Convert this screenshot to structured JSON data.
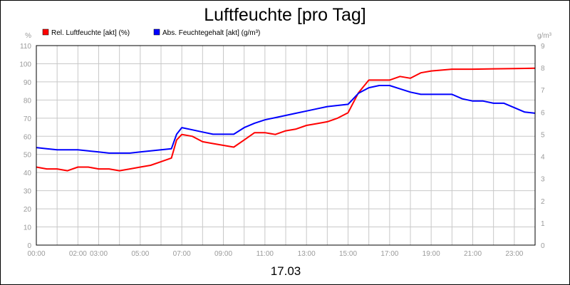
{
  "chart_data": {
    "type": "line",
    "title": "Luftfeuchte [pro Tag]",
    "date_label": "17.03",
    "left_axis": {
      "unit": "%",
      "ylim": [
        0,
        110
      ],
      "ticks": [
        "0",
        "10",
        "20",
        "30",
        "40",
        "50",
        "60",
        "70",
        "80",
        "90",
        "100",
        "110"
      ]
    },
    "right_axis": {
      "unit": "g/m³",
      "ylim": [
        0,
        9
      ],
      "ticks": [
        "0",
        "1",
        "2",
        "3",
        "4",
        "5",
        "6",
        "7",
        "8",
        "9"
      ]
    },
    "x_axis": {
      "xlim_hours": [
        0,
        24
      ],
      "ticks": [
        {
          "label": "00:00",
          "h": 0
        },
        {
          "label": "02:00",
          "h": 2
        },
        {
          "label": "03:00",
          "h": 3
        },
        {
          "label": "05:00",
          "h": 5
        },
        {
          "label": "07:00",
          "h": 7
        },
        {
          "label": "09:00",
          "h": 9
        },
        {
          "label": "11:00",
          "h": 11
        },
        {
          "label": "13:00",
          "h": 13
        },
        {
          "label": "15:00",
          "h": 15
        },
        {
          "label": "17:00",
          "h": 17
        },
        {
          "label": "19:00",
          "h": 19
        },
        {
          "label": "21:00",
          "h": 21
        },
        {
          "label": "23:00",
          "h": 23
        }
      ]
    },
    "grid": true,
    "legend_position": "top-left",
    "series": [
      {
        "name": "Rel. Luftfeuchte [akt] (%)",
        "axis": "left",
        "color": "#ff0000",
        "x": [
          0,
          0.5,
          1,
          1.5,
          2,
          2.5,
          3,
          3.5,
          4,
          4.5,
          5,
          5.5,
          6,
          6.5,
          6.75,
          7,
          7.5,
          8,
          8.5,
          9,
          9.5,
          10,
          10.5,
          11,
          11.5,
          12,
          12.5,
          13,
          13.5,
          14,
          14.5,
          15,
          15.5,
          16,
          16.5,
          17,
          17.5,
          18,
          18.5,
          19,
          19.5,
          20,
          21,
          22,
          23,
          24
        ],
        "y": [
          43,
          42,
          42,
          41,
          43,
          43,
          42,
          42,
          41,
          42,
          43,
          44,
          46,
          48,
          58,
          61,
          60,
          57,
          56,
          55,
          54,
          58,
          62,
          62,
          61,
          63,
          64,
          66,
          67,
          68,
          70,
          73,
          84,
          91,
          91,
          91,
          93,
          92,
          95,
          96,
          96.5,
          97,
          97,
          97.2,
          97.3,
          97.5
        ]
      },
      {
        "name": "Abs. Feuchtegehalt [akt] (g/m³)",
        "axis": "right",
        "color": "#0000ff",
        "x": [
          0,
          0.5,
          1,
          1.5,
          2,
          2.5,
          3,
          3.5,
          4,
          4.5,
          5,
          5.5,
          6,
          6.5,
          6.75,
          7,
          7.5,
          8,
          8.5,
          9,
          9.5,
          10,
          10.5,
          11,
          11.5,
          12,
          12.5,
          13,
          13.5,
          14,
          14.5,
          15,
          15.5,
          16,
          16.5,
          17,
          17.5,
          18,
          18.5,
          19,
          19.5,
          20,
          20.5,
          21,
          21.5,
          22,
          22.5,
          23,
          23.5,
          24
        ],
        "y": [
          4.4,
          4.35,
          4.3,
          4.3,
          4.3,
          4.25,
          4.2,
          4.15,
          4.15,
          4.15,
          4.2,
          4.25,
          4.3,
          4.35,
          5.0,
          5.3,
          5.2,
          5.1,
          5.0,
          5.0,
          5.0,
          5.3,
          5.5,
          5.65,
          5.75,
          5.85,
          5.95,
          6.05,
          6.15,
          6.25,
          6.3,
          6.35,
          6.85,
          7.1,
          7.2,
          7.2,
          7.05,
          6.9,
          6.8,
          6.8,
          6.8,
          6.8,
          6.6,
          6.5,
          6.5,
          6.4,
          6.4,
          6.2,
          6.0,
          5.95
        ]
      }
    ]
  }
}
